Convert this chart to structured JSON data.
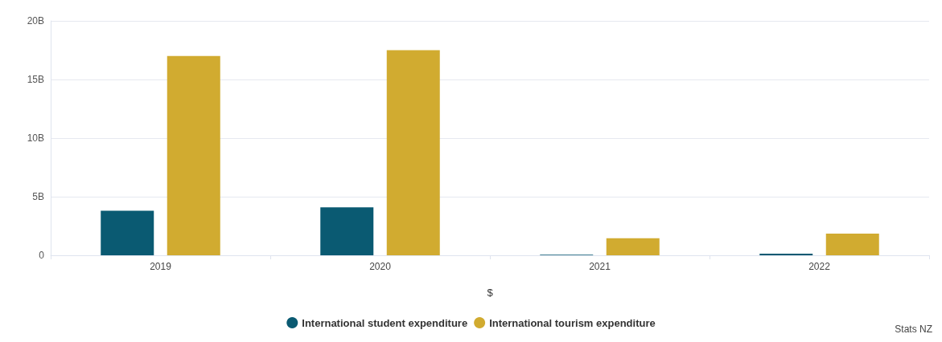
{
  "chart_data": {
    "type": "bar",
    "xlabel": "$",
    "categories": [
      "2019",
      "2020",
      "2021",
      "2022"
    ],
    "series": [
      {
        "name": "International student expenditure",
        "color": "#0a5a72",
        "values": [
          3800000000,
          4100000000,
          50000000,
          130000000
        ]
      },
      {
        "name": "International tourism expenditure",
        "color": "#d1ab30",
        "values": [
          17000000000,
          17500000000,
          1450000000,
          1850000000
        ]
      }
    ],
    "ylim": [
      0,
      20000000000
    ],
    "yticks": [
      0,
      {
        "value": 5000000000,
        "label": "5B"
      },
      {
        "value": 10000000000,
        "label": "10B"
      },
      {
        "value": 15000000000,
        "label": "15B"
      },
      {
        "value": 20000000000,
        "label": "20B"
      }
    ],
    "grid": "y",
    "legend": "bottom",
    "annotations": [
      "Stats NZ"
    ]
  }
}
